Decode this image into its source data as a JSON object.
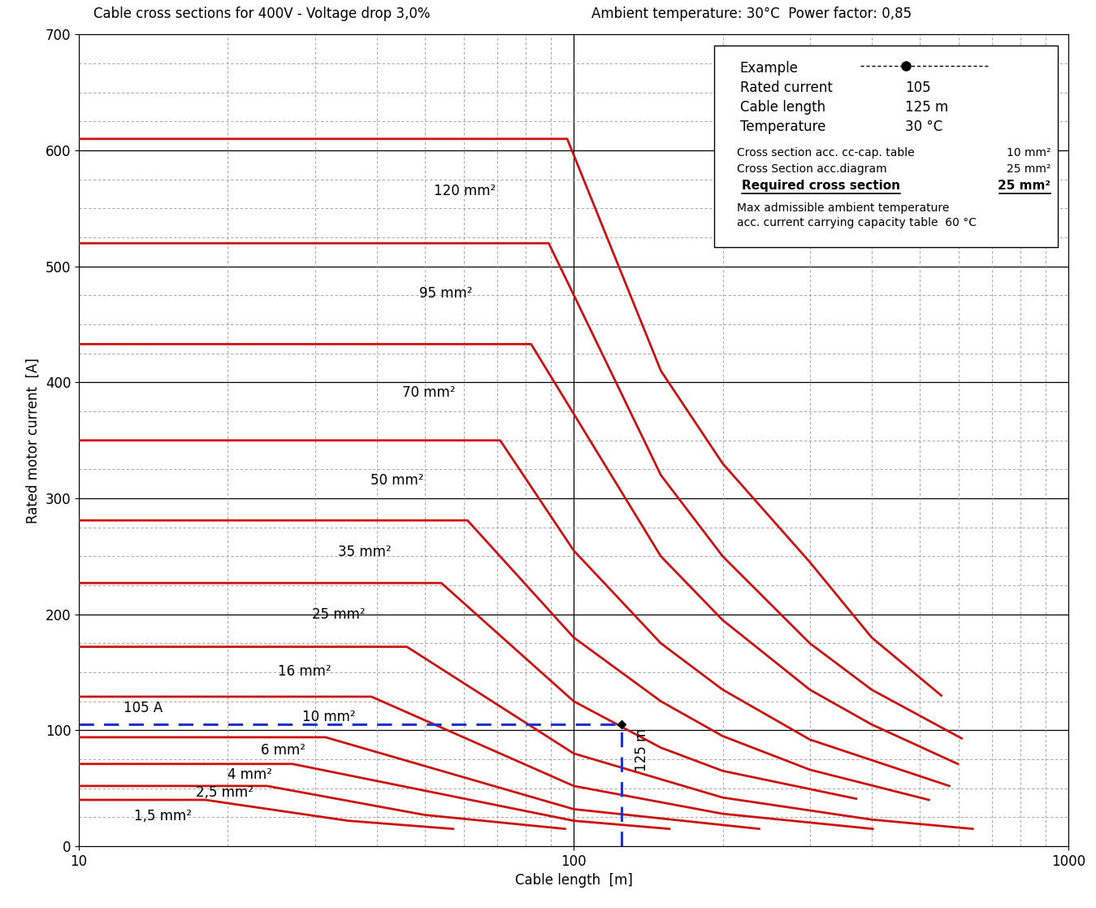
{
  "chart_data": {
    "type": "line",
    "title": "Cable cross sections for 400V - Voltage drop 3,0%",
    "subtitle": "Ambient temperature: 30°C  Power factor: 0,85",
    "x_label": "Cable length  [m]",
    "y_label": "Rated motor current  [A]",
    "log": "x",
    "grid": true,
    "xlim": [
      10,
      1000
    ],
    "ylim": [
      0,
      700
    ],
    "xticks": [
      10,
      100,
      1000
    ],
    "yticks": [
      0,
      100,
      200,
      300,
      400,
      500,
      600,
      700
    ],
    "series": [
      {
        "name": "120 mm²",
        "color": "#cc1111",
        "x": [
          10,
          97,
          150,
          200,
          300,
          400,
          553
        ],
        "values": [
          610,
          610,
          410,
          330,
          245,
          180,
          130
        ]
      },
      {
        "name": "95 mm²",
        "color": "#cc1111",
        "x": [
          10,
          89,
          150,
          200,
          300,
          400,
          608
        ],
        "values": [
          520,
          520,
          320,
          250,
          175,
          135,
          93
        ]
      },
      {
        "name": "70 mm²",
        "color": "#cc1111",
        "x": [
          10,
          82,
          150,
          200,
          300,
          400,
          597
        ],
        "values": [
          433,
          433,
          250,
          195,
          135,
          105,
          71
        ]
      },
      {
        "name": "50 mm²",
        "color": "#cc1111",
        "x": [
          10,
          71,
          100,
          150,
          200,
          300,
          574
        ],
        "values": [
          350,
          350,
          255,
          175,
          135,
          92,
          52
        ]
      },
      {
        "name": "35 mm²",
        "color": "#cc1111",
        "x": [
          10,
          61,
          100,
          150,
          200,
          300,
          522
        ],
        "values": [
          281,
          281,
          180,
          125,
          95,
          66,
          40
        ]
      },
      {
        "name": "25 mm²",
        "color": "#cc1111",
        "x": [
          10,
          54,
          100,
          150,
          200,
          372
        ],
        "values": [
          227,
          227,
          125,
          85,
          65,
          41
        ]
      },
      {
        "name": "16 mm²",
        "color": "#cc1111",
        "x": [
          10,
          46,
          100,
          200,
          400,
          640
        ],
        "values": [
          172,
          172,
          80,
          42,
          23,
          15
        ]
      },
      {
        "name": "10 mm²",
        "color": "#cc1111",
        "x": [
          10,
          39,
          100,
          200,
          402
        ],
        "values": [
          129,
          129,
          52,
          28,
          15
        ]
      },
      {
        "name": "6 mm²",
        "color": "#cc1111",
        "x": [
          10,
          31.5,
          100,
          237
        ],
        "values": [
          94,
          94,
          32,
          15
        ]
      },
      {
        "name": "4 mm²",
        "color": "#cc1111",
        "x": [
          10,
          27,
          100,
          156
        ],
        "values": [
          71,
          71,
          22,
          15
        ]
      },
      {
        "name": "2,5 mm²",
        "color": "#cc1111",
        "x": [
          10,
          24,
          50,
          96
        ],
        "values": [
          52,
          52,
          27,
          15
        ]
      },
      {
        "name": "1,5 mm²",
        "color": "#cc1111",
        "x": [
          10,
          18,
          35,
          57
        ],
        "values": [
          40,
          40,
          22,
          15
        ]
      }
    ],
    "example": {
      "current": 105,
      "length": 125,
      "color": "#2233cc",
      "current_label": "105 A",
      "length_label": "125 m"
    },
    "info_box": {
      "rows": [
        [
          "Example",
          ""
        ],
        [
          "Rated current",
          "105"
        ],
        [
          "Cable length",
          "125 m"
        ],
        [
          "Temperature",
          "30 °C"
        ]
      ],
      "details": [
        [
          "Cross section acc. cc-cap. table",
          "10 mm²"
        ],
        [
          "Cross Section acc.diagram",
          "25 mm²"
        ]
      ],
      "result": [
        "Required cross section",
        "25 mm²"
      ],
      "note": [
        "Max admissible ambient temperature",
        "acc. current carrying capacity table  60 °C"
      ]
    }
  }
}
